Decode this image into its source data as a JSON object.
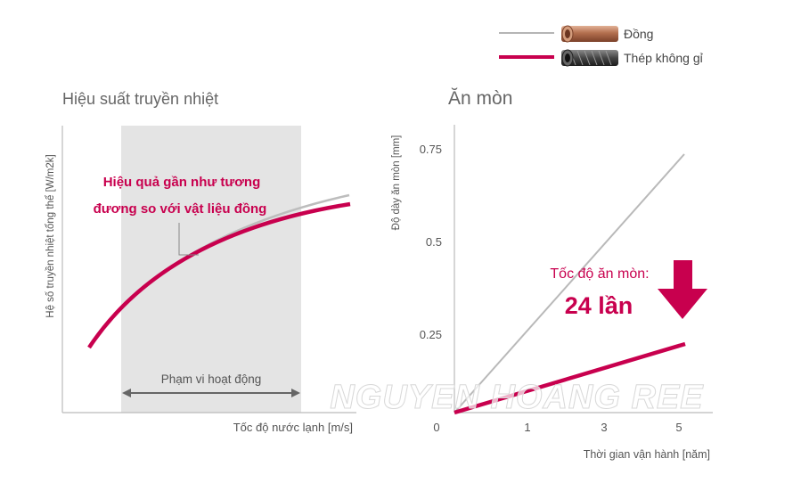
{
  "legend": {
    "items": [
      {
        "label": "Đồng",
        "color": "#b5b5b5",
        "icon": "copper-tube-icon"
      },
      {
        "label": "Thép không gỉ",
        "color": "#c8004e",
        "icon": "stainless-steel-tube-icon"
      }
    ]
  },
  "watermark": "NGUYEN HOANG REE",
  "accent_color": "#c8004e",
  "chart_data": [
    {
      "type": "line",
      "title": "Hiệu suất truyền nhiệt",
      "xlabel": "Tốc độ nước lạnh [m/s]",
      "ylabel": "Hệ số truyền nhiệt tổng thể [W/m2k]",
      "grid": false,
      "x": [
        0,
        1,
        2,
        3,
        4,
        5,
        6
      ],
      "series": [
        {
          "name": "Đồng",
          "color": "#b5b5b5",
          "values": [
            0,
            23,
            40,
            53,
            63,
            71,
            78
          ]
        },
        {
          "name": "Thép không gỉ",
          "color": "#c8004e",
          "values": [
            0,
            25,
            41,
            53,
            62,
            69,
            75
          ]
        }
      ],
      "annotations": {
        "callout": [
          "Hiệu quả gần như tương",
          "đương so với vật liệu đồng"
        ],
        "range_label": "Phạm vi hoạt động",
        "range_x": [
          1.1,
          4.5
        ]
      }
    },
    {
      "type": "line",
      "title": "Ăn mòn",
      "xlabel": "Thời gian vận hành [năm]",
      "ylabel": "Độ dày ăn mòn [mm]",
      "grid": false,
      "xlim": [
        0,
        6
      ],
      "ylim": [
        0,
        0.85
      ],
      "xticks": [
        "0",
        "1",
        "3",
        "5"
      ],
      "yticks": [
        "0.25",
        "0.5",
        "0.75"
      ],
      "series": [
        {
          "name": "Đồng",
          "color": "#b5b5b5",
          "x": [
            0,
            5
          ],
          "y": [
            0,
            0.74
          ]
        },
        {
          "name": "Thép không gỉ",
          "color": "#c8004e",
          "x": [
            0,
            5
          ],
          "y": [
            0,
            0.22
          ]
        }
      ],
      "annotations": {
        "rate_label": "Tốc độ ăn mòn:",
        "rate_value": "24 lần",
        "arrow": "arrow-down-icon"
      }
    }
  ]
}
